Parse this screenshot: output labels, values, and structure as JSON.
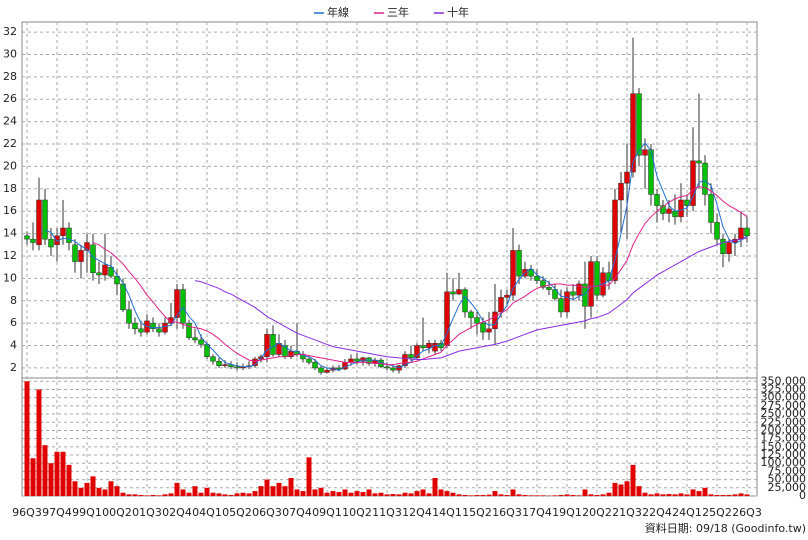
{
  "chart_data": [
    {
      "type": "candlestick",
      "legend": "top",
      "grid": true,
      "up_color": "#e00000",
      "down_color": "#00c000",
      "wick_color": "#333333",
      "note": "資料日期: 09/18  (Goodinfo.tw)",
      "categories": [
        "96Q3",
        null,
        null,
        null,
        null,
        "97Q4",
        null,
        null,
        null,
        null,
        "99Q1",
        null,
        null,
        null,
        null,
        "00Q2",
        null,
        null,
        null,
        null,
        "01Q3",
        null,
        null,
        null,
        null,
        "02Q4",
        null,
        null,
        null,
        null,
        "04Q1",
        null,
        null,
        null,
        null,
        "05Q2",
        null,
        null,
        null,
        null,
        "06Q3",
        null,
        null,
        null,
        null,
        "07Q4",
        null,
        null,
        null,
        null,
        "09Q1",
        null,
        null,
        null,
        null,
        "10Q2",
        null,
        null,
        null,
        null,
        "11Q3",
        null,
        null,
        null,
        null,
        "12Q4",
        null,
        null,
        null,
        null,
        "14Q1",
        null,
        null,
        null,
        null,
        "15Q2",
        null,
        null,
        null,
        null,
        "16Q3",
        null,
        null,
        null,
        null,
        "17Q4",
        null,
        null,
        null,
        null,
        "19Q1",
        null,
        null,
        null,
        null,
        "20Q2",
        null,
        null,
        null,
        null,
        "21Q3",
        null,
        null,
        null,
        null,
        "22Q4",
        null,
        null,
        null,
        null,
        "24Q1",
        null,
        null,
        null,
        null,
        "25Q2",
        null,
        null,
        null,
        null,
        "26Q3"
      ],
      "open": [
        13.8,
        13.5,
        13,
        17,
        13.5,
        13,
        13.8,
        14.5,
        13,
        11.5,
        12.5,
        13,
        10.5,
        10.3,
        11,
        10.2,
        9.5,
        7.2,
        6,
        5.5,
        5.2,
        6,
        5.5,
        5.2,
        6,
        6.5,
        9,
        6,
        4.7,
        4.5,
        4.1,
        3,
        2.6,
        2.2,
        2.3,
        2.1,
        2,
        2.1,
        2.2,
        2.8,
        3,
        5,
        3.2,
        4,
        3,
        3.5,
        3.2,
        2.8,
        2.5,
        2,
        1.6,
        1.8,
        2,
        1.9,
        2.5,
        2.8,
        2.6,
        2.9,
        2.4,
        2.7,
        2.1,
        2,
        1.8,
        2.2,
        3.2,
        2.9,
        4,
        3.8,
        3.5,
        4.2,
        4,
        8.8,
        8.6,
        9,
        7,
        6.5,
        6,
        5.2,
        5.5,
        7,
        8.3,
        8.5,
        12.5,
        10.2,
        10.8,
        10.2,
        9.8,
        9.2,
        9,
        8.2,
        7,
        8.8,
        8.5,
        9.5,
        7.5,
        11.5,
        8.5,
        10.5,
        9.8,
        17,
        18.5,
        19.5,
        26.5,
        21,
        21.5,
        17.5,
        16.5,
        15.8,
        16,
        15.5,
        17,
        16.5,
        20.5,
        20.3,
        17.5,
        15,
        13.5,
        12.2,
        13.2,
        13.5,
        14.5
      ],
      "high": [
        14.2,
        15,
        19,
        18,
        14.5,
        14.5,
        17,
        15,
        13.5,
        13,
        14,
        14,
        11.5,
        14,
        12,
        10.8,
        10,
        8,
        6.5,
        6.2,
        6.8,
        6.5,
        6,
        6.5,
        7.8,
        9.5,
        9.5,
        6.3,
        5.5,
        5,
        4.3,
        3.2,
        2.9,
        2.7,
        2.6,
        2.5,
        2.4,
        2.6,
        3,
        3.2,
        5.5,
        5.8,
        5,
        4.5,
        4,
        6,
        3.5,
        3,
        2.8,
        2.2,
        2,
        2.2,
        2.3,
        2.8,
        3.2,
        3.3,
        3,
        3,
        2.9,
        2.9,
        2.5,
        2.3,
        2.3,
        3.5,
        4,
        4.2,
        6.5,
        4.5,
        4.5,
        4.5,
        10.5,
        10,
        10.5,
        9.2,
        7.2,
        7,
        6.5,
        7,
        9.5,
        9,
        9,
        14.5,
        13,
        11.5,
        11.2,
        10.8,
        10.2,
        9.8,
        9.5,
        9,
        9.2,
        9.5,
        9.8,
        11.5,
        12,
        12,
        11,
        11.5,
        18,
        19.5,
        22,
        31.5,
        27,
        22.5,
        22,
        18,
        17,
        17,
        17.5,
        18.5,
        17.5,
        23.5,
        26.5,
        21,
        18.5,
        15.8,
        14,
        13.5,
        14,
        16,
        15.5
      ],
      "low": [
        13,
        12.5,
        12.5,
        13,
        12,
        11.5,
        13,
        12.5,
        10.5,
        10,
        10.5,
        9.8,
        9.5,
        9.8,
        10,
        8.5,
        7,
        5.5,
        5,
        4.8,
        5,
        5.2,
        4.8,
        5,
        5.8,
        5.5,
        5.5,
        4.5,
        4.2,
        3.8,
        2.8,
        2.3,
        2,
        2,
        1.9,
        1.8,
        1.8,
        1.9,
        2,
        2.5,
        2.5,
        3,
        3,
        2.8,
        2.8,
        3,
        2.5,
        2.3,
        1.8,
        1.4,
        1.5,
        1.6,
        1.7,
        1.8,
        2.2,
        2.3,
        2.2,
        2.2,
        2.1,
        2,
        1.8,
        1.6,
        1.5,
        2,
        2.6,
        2.8,
        3.5,
        3.3,
        3.2,
        3.5,
        3.8,
        8,
        8.5,
        6.5,
        5.5,
        5,
        4.5,
        4.5,
        4,
        6.5,
        7.5,
        8,
        9.5,
        10,
        9.8,
        9.5,
        9,
        8.5,
        8,
        6.5,
        6.5,
        8,
        8,
        5.5,
        6.5,
        8,
        8.3,
        9,
        9.5,
        14,
        13.5,
        19,
        20,
        18,
        16.5,
        15,
        15.2,
        15,
        14.8,
        15,
        15.5,
        16,
        18,
        16.5,
        14,
        13,
        11,
        11.5,
        12,
        12.8,
        13.2
      ],
      "close": [
        13.5,
        13.2,
        17,
        13.5,
        12.8,
        13.8,
        14.5,
        13.2,
        11.5,
        12.5,
        13.2,
        10.5,
        10.3,
        11.2,
        10.2,
        9.5,
        7.2,
        6,
        5.5,
        5.2,
        6.2,
        5.5,
        5.2,
        6,
        6.5,
        9,
        6,
        4.7,
        4.5,
        4.1,
        3,
        2.6,
        2.2,
        2.3,
        2.1,
        2,
        2.1,
        2.2,
        2.8,
        3,
        5,
        3.2,
        4.2,
        3,
        3.5,
        3.2,
        2.8,
        2.5,
        2,
        1.6,
        1.8,
        2,
        1.9,
        2.5,
        2.8,
        2.6,
        2.9,
        2.4,
        2.7,
        2.1,
        2,
        1.8,
        2.2,
        3.2,
        2.9,
        4,
        3.8,
        4.2,
        4.2,
        3.8,
        8.8,
        8.6,
        9,
        7,
        6.5,
        6,
        5.2,
        5.5,
        7,
        8.3,
        8.5,
        12.5,
        10.2,
        10.8,
        10.2,
        9.8,
        9.2,
        9,
        8.2,
        7,
        8.8,
        8.5,
        9.5,
        7.5,
        11.5,
        8.5,
        10.5,
        9.8,
        17,
        18.5,
        19.5,
        26.5,
        21,
        21.5,
        17.5,
        16.5,
        15.8,
        16.2,
        15.5,
        17,
        16.5,
        20.5,
        20.3,
        17.5,
        15,
        13.5,
        12.2,
        13.2,
        13.5,
        14.5,
        13.8
      ],
      "series": [
        {
          "name": "年線",
          "color": "#1f6fd0",
          "values": [
            null,
            null,
            null,
            14.3,
            14.1,
            13.3,
            13.6,
            13.5,
            13.3,
            12.9,
            12.6,
            11.9,
            11.6,
            11.3,
            11.1,
            10.3,
            9.6,
            8.5,
            7.1,
            6,
            5.7,
            5.6,
            5.6,
            5.7,
            5.8,
            6.7,
            7.4,
            6.6,
            6,
            4.8,
            4.1,
            3.6,
            3,
            2.5,
            2.3,
            2.2,
            2.1,
            2.1,
            2.3,
            2.9,
            3.6,
            3.9,
            4.2,
            3.9,
            3.5,
            3.5,
            3.1,
            3,
            2.7,
            2.2,
            2,
            1.9,
            1.8,
            2.1,
            2.3,
            2.5,
            2.7,
            2.7,
            2.7,
            2.5,
            2.3,
            2.2,
            2,
            2.3,
            2.5,
            3.1,
            3.5,
            3.7,
            4,
            4,
            5.1,
            6.4,
            7.6,
            8.4,
            7.8,
            7.1,
            6.2,
            5.8,
            5.9,
            6.8,
            7.6,
            9.1,
            9.9,
            10.5,
            10.9,
            10.3,
            10,
            9.6,
            9.1,
            8.4,
            8.3,
            8.1,
            8.4,
            8.6,
            9.3,
            9.3,
            9.5,
            9.8,
            11.7,
            14,
            16.5,
            20.4,
            21.4,
            22.1,
            21.4,
            19.1,
            17.8,
            16.5,
            16,
            16.1,
            16.3,
            17.3,
            18.6,
            18.7,
            18.3,
            16.6,
            14.6,
            13.5,
            13.1,
            13.4,
            13.8
          ]
        },
        {
          "name": "三年",
          "color": "#e0208a",
          "values": [
            null,
            null,
            null,
            null,
            null,
            null,
            null,
            null,
            null,
            null,
            null,
            13.2,
            13,
            12.6,
            12.3,
            11.8,
            11.3,
            10.6,
            10,
            9.3,
            8.5,
            7.9,
            7.2,
            6.6,
            6.1,
            6.1,
            5.9,
            5.7,
            5.6,
            5.5,
            5.3,
            5,
            4.6,
            4.1,
            3.7,
            3.3,
            3,
            2.7,
            2.6,
            2.7,
            2.8,
            2.9,
            3,
            3,
            3.1,
            3.2,
            3.2,
            3.1,
            3,
            2.9,
            2.8,
            2.7,
            2.6,
            2.5,
            2.5,
            2.5,
            2.5,
            2.5,
            2.4,
            2.4,
            2.3,
            2.3,
            2.4,
            2.5,
            2.5,
            2.6,
            2.8,
            3,
            3.2,
            3.4,
            4,
            4.5,
            5,
            5.3,
            5.6,
            5.9,
            6.1,
            6.3,
            6.6,
            6.9,
            7.2,
            7.8,
            8.1,
            8.4,
            8.8,
            9.1,
            9.3,
            9.4,
            9.5,
            9.5,
            9.4,
            9.4,
            9.3,
            9.2,
            9.3,
            9.3,
            9.4,
            9.4,
            10,
            10.8,
            11.6,
            13,
            14,
            14.9,
            15.5,
            16,
            16.4,
            16.8,
            17.1,
            17.3,
            17.4,
            17.9,
            18.2,
            18.1,
            17.8,
            17.4,
            16.9,
            16.5,
            16.2,
            15.9,
            15.5
          ]
        },
        {
          "name": "十年",
          "color": "#8a2be2",
          "values": [
            null,
            null,
            null,
            null,
            null,
            null,
            null,
            null,
            null,
            null,
            null,
            null,
            null,
            null,
            null,
            null,
            null,
            null,
            null,
            null,
            null,
            null,
            null,
            null,
            null,
            null,
            null,
            null,
            9.8,
            9.7,
            9.5,
            9.3,
            9.1,
            8.8,
            8.6,
            8.3,
            8,
            7.7,
            7.4,
            7,
            6.6,
            6.3,
            6,
            5.7,
            5.4,
            5.1,
            4.9,
            4.7,
            4.5,
            4.3,
            4.1,
            3.9,
            3.8,
            3.7,
            3.6,
            3.5,
            3.4,
            3.3,
            3.2,
            3.1,
            3,
            2.95,
            2.9,
            2.85,
            2.8,
            2.75,
            2.75,
            2.8,
            2.85,
            2.9,
            3.1,
            3.3,
            3.5,
            3.6,
            3.7,
            3.8,
            3.9,
            4,
            4.1,
            4.25,
            4.4,
            4.6,
            4.8,
            5,
            5.2,
            5.4,
            5.5,
            5.6,
            5.7,
            5.8,
            5.9,
            6,
            6.1,
            6.2,
            6.4,
            6.5,
            6.7,
            6.9,
            7.3,
            7.7,
            8.1,
            8.7,
            9.1,
            9.5,
            9.9,
            10.3,
            10.6,
            10.9,
            11.2,
            11.5,
            11.8,
            12.1,
            12.4,
            12.6,
            12.8,
            13,
            13.2,
            13.3,
            13.4,
            13.5,
            13.6
          ]
        }
      ],
      "ylim": [
        1.1,
        32.9
      ],
      "yticks": [
        2,
        4,
        6,
        8,
        10,
        12,
        14,
        16,
        18,
        20,
        22,
        24,
        26,
        28,
        30,
        32
      ]
    },
    {
      "type": "bar",
      "color": "#e00000",
      "values": [
        350000,
        115000,
        325000,
        155000,
        100000,
        135000,
        135000,
        95000,
        45000,
        25000,
        40000,
        60000,
        25000,
        20000,
        45000,
        30000,
        10000,
        5000,
        5000,
        3000,
        2000,
        3000,
        2000,
        5000,
        8000,
        40000,
        20000,
        10000,
        30000,
        10000,
        25000,
        10000,
        8000,
        5000,
        3000,
        8000,
        10000,
        8000,
        15000,
        30000,
        50000,
        30000,
        40000,
        30000,
        55000,
        20000,
        15000,
        118000,
        20000,
        25000,
        10000,
        15000,
        12000,
        20000,
        10000,
        15000,
        12000,
        20000,
        8000,
        10000,
        5000,
        6000,
        5000,
        10000,
        8000,
        15000,
        20000,
        8000,
        55000,
        20000,
        15000,
        10000,
        5000,
        3000,
        2000,
        3000,
        3000,
        4000,
        15000,
        5000,
        3000,
        20000,
        5000,
        3000,
        2000,
        2000,
        2000,
        1000,
        2000,
        3000,
        5000,
        3000,
        2000,
        20000,
        5000,
        3000,
        5000,
        10000,
        40000,
        35000,
        45000,
        95000,
        30000,
        10000,
        5000,
        8000,
        5000,
        6000,
        5000,
        8000,
        5000,
        20000,
        15000,
        25000,
        5000,
        3000,
        3000,
        3000,
        5000,
        8000,
        5000
      ],
      "ylim": [
        0,
        360000
      ],
      "yticks": [
        0,
        {
          "value": 25000,
          "label": "25,000"
        },
        {
          "value": 50000,
          "label": "50,000"
        },
        {
          "value": 75000,
          "label": "75,000"
        },
        {
          "value": 100000,
          "label": "100,000"
        },
        {
          "value": 125000,
          "label": "125,000"
        },
        {
          "value": 150000,
          "label": "150,000"
        },
        {
          "value": 175000,
          "label": "175,000"
        },
        {
          "value": 200000,
          "label": "200,000"
        },
        {
          "value": 225000,
          "label": "225,000"
        },
        {
          "value": 250000,
          "label": "250,000"
        },
        {
          "value": 275000,
          "label": "275,000"
        },
        {
          "value": 300000,
          "label": "300,000"
        },
        {
          "value": 325000,
          "label": "325,000"
        },
        {
          "value": 350000,
          "label": "350,000"
        }
      ]
    }
  ]
}
